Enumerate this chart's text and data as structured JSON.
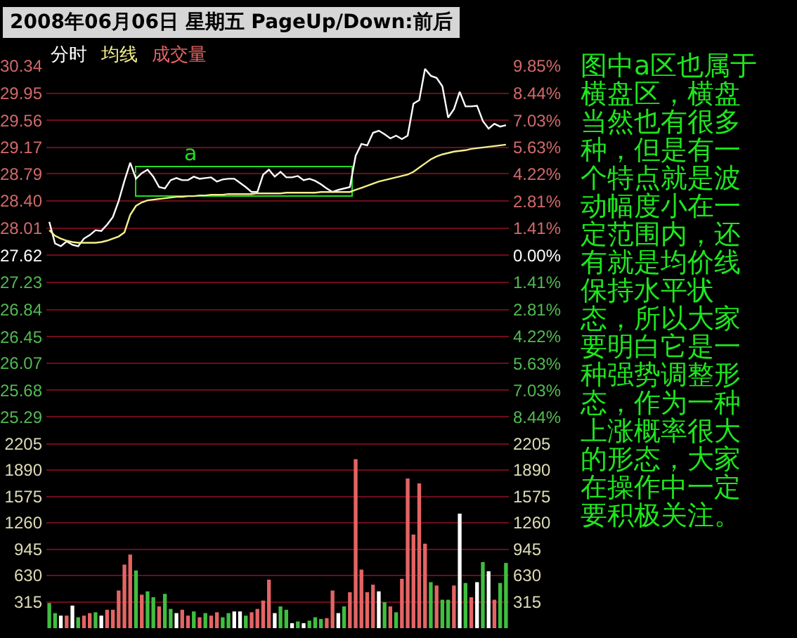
{
  "chart_data": [
    {
      "type": "line",
      "title": "2008年06月06日 星期五 PageUp/Down:前后",
      "categories": [
        null,
        null,
        null,
        null,
        null,
        null,
        null,
        null,
        null,
        null,
        null,
        null,
        null,
        null,
        null,
        null,
        null,
        null,
        null,
        null,
        null,
        null,
        null,
        null,
        null,
        null,
        null,
        null,
        null,
        null,
        null,
        null,
        null,
        null,
        null,
        null,
        null,
        null,
        null,
        null,
        null,
        null,
        null,
        null,
        null,
        null,
        null,
        null,
        null,
        null,
        null,
        null,
        null,
        null,
        null,
        null,
        null,
        null,
        null,
        null,
        null,
        null,
        null,
        null,
        null,
        null,
        null,
        null,
        null,
        null,
        null,
        null,
        null,
        null,
        null,
        null,
        null,
        null,
        null,
        null
      ],
      "series": [
        {
          "name": "分时",
          "color": "#ffffff",
          "values": [
            28.1,
            27.79,
            27.75,
            27.82,
            27.77,
            27.75,
            27.86,
            27.91,
            27.98,
            27.97,
            28.06,
            28.17,
            28.4,
            28.69,
            28.95,
            28.72,
            28.8,
            28.85,
            28.75,
            28.6,
            28.58,
            28.7,
            28.73,
            28.7,
            28.7,
            28.75,
            28.72,
            28.73,
            28.74,
            28.68,
            28.71,
            28.72,
            28.72,
            28.66,
            28.6,
            28.53,
            28.53,
            28.78,
            28.85,
            28.75,
            28.82,
            28.74,
            28.74,
            28.76,
            28.7,
            28.72,
            28.69,
            28.64,
            28.58,
            28.53,
            28.56,
            28.58,
            28.6,
            29.05,
            29.22,
            29.2,
            29.38,
            29.41,
            29.36,
            29.3,
            29.34,
            29.29,
            29.34,
            29.8,
            29.85,
            30.3,
            30.2,
            30.17,
            30.05,
            29.6,
            29.72,
            29.97,
            29.76,
            29.76,
            29.77,
            29.55,
            29.44,
            29.51,
            29.47,
            29.49
          ]
        },
        {
          "name": "均线",
          "color": "#f4f08c",
          "values": [
            27.98,
            27.9,
            27.86,
            27.83,
            27.81,
            27.8,
            27.8,
            27.8,
            27.8,
            27.81,
            27.83,
            27.86,
            27.89,
            27.95,
            28.2,
            28.33,
            28.38,
            28.41,
            28.42,
            28.43,
            28.44,
            28.45,
            28.46,
            28.46,
            28.47,
            28.47,
            28.48,
            28.48,
            28.49,
            28.49,
            28.49,
            28.5,
            28.5,
            28.5,
            28.5,
            28.5,
            28.51,
            28.51,
            28.51,
            28.51,
            28.51,
            28.52,
            28.52,
            28.52,
            28.52,
            28.52,
            28.52,
            28.53,
            28.53,
            28.53,
            28.53,
            28.53,
            28.53,
            28.56,
            28.59,
            28.62,
            28.65,
            28.68,
            28.7,
            28.72,
            28.74,
            28.76,
            28.78,
            28.82,
            28.88,
            28.94,
            29.0,
            29.04,
            29.07,
            29.09,
            29.11,
            29.12,
            29.13,
            29.15,
            29.16,
            29.17,
            29.18,
            29.19,
            29.2,
            29.21
          ]
        }
      ],
      "ylim": [
        25.29,
        30.34
      ],
      "yticks": [
        25.29,
        25.68,
        26.07,
        26.45,
        26.84,
        27.23,
        27.62,
        28.01,
        {
          "value": 28.4,
          "label": "28.40"
        },
        28.79,
        29.17,
        29.56,
        29.95,
        30.34
      ],
      "y2lim": [
        -8.44,
        9.85
      ],
      "y2ticks": [
        {
          "value": -8.44,
          "label": "8.44%"
        },
        {
          "value": -7.03,
          "label": "7.03%"
        },
        {
          "value": -5.63,
          "label": "5.63%"
        },
        {
          "value": -4.22,
          "label": "4.22%"
        },
        {
          "value": -2.81,
          "label": "2.81%"
        },
        {
          "value": -1.41,
          "label": "1.41%"
        },
        {
          "value": 0,
          "label": "0.00%"
        },
        {
          "value": 1.41,
          "label": "1.41%"
        },
        {
          "value": 2.81,
          "label": "2.81%"
        },
        {
          "value": 4.22,
          "label": "4.22%"
        },
        {
          "value": 5.63,
          "label": "5.63%"
        },
        {
          "value": 7.03,
          "label": "7.03%"
        },
        {
          "value": 8.44,
          "label": "8.44%"
        },
        {
          "value": 9.85,
          "label": "9.85%"
        }
      ],
      "grid": "y",
      "legend": "top left",
      "annotations": [
        "图中a区也属于横盘区，横盘当然也有很多种，但是有一个特点就是波动幅度小在一定范围内，还有就是均价线保持水平状态，所以大家要明白它是一种强势调整形态，作为一种上涨概率很大的形态，大家在操作中一定要积极关注。",
        "a"
      ]
    },
    {
      "type": "bar",
      "categories": [
        null,
        null,
        null,
        null,
        null,
        null,
        null,
        null,
        null,
        null,
        null,
        null,
        null,
        null,
        null,
        null,
        null,
        null,
        null,
        null,
        null,
        null,
        null,
        null,
        null,
        null,
        null,
        null,
        null,
        null,
        null,
        null,
        null,
        null,
        null,
        null,
        null,
        null,
        null,
        null,
        null,
        null,
        null,
        null,
        null,
        null,
        null,
        null,
        null,
        null,
        null,
        null,
        null,
        null,
        null,
        null,
        null,
        null,
        null,
        null,
        null,
        null,
        null,
        null,
        null,
        null,
        null,
        null,
        null,
        null,
        null,
        null,
        null,
        null,
        null,
        null,
        null,
        null,
        null,
        null
      ],
      "series": [
        {
          "name": "成交量",
          "color": "#e46464",
          "values": [
            300,
            180,
            150,
            150,
            270,
            130,
            150,
            180,
            190,
            150,
            220,
            220,
            450,
            760,
            880,
            690,
            400,
            440,
            370,
            260,
            410,
            230,
            180,
            220,
            150,
            200,
            130,
            180,
            150,
            190,
            130,
            180,
            200,
            200,
            150,
            190,
            230,
            330,
            580,
            180,
            260,
            220,
            60,
            80,
            60,
            90,
            130,
            110,
            120,
            450,
            180,
            260,
            430,
            2020,
            700,
            430,
            520,
            440,
            310,
            260,
            190,
            590,
            1790,
            1120,
            1730,
            1010,
            550,
            510,
            340,
            340,
            510,
            1370,
            540,
            370,
            550,
            790,
            680,
            340,
            540,
            780
          ],
          "colors": [
            "#40be40",
            "#40be40",
            "#ffffff",
            "#e46464",
            "#ffffff",
            "#40be40",
            "#e46464",
            "#e46464",
            "#40be40",
            "#ffffff",
            "#e46464",
            "#e46464",
            "#e46464",
            "#e46464",
            "#e46464",
            "#40be40",
            "#e46464",
            "#40be40",
            "#40be40",
            "#e46464",
            "#40be40",
            "#40be40",
            "#ffffff",
            "#e46464",
            "#e46464",
            "#40be40",
            "#e46464",
            "#40be40",
            "#e46464",
            "#e46464",
            "#40be40",
            "#40be40",
            "#ffffff",
            "#ffffff",
            "#40be40",
            "#e46464",
            "#e46464",
            "#e46464",
            "#e46464",
            "#ffffff",
            "#40be40",
            "#40be40",
            "#ffffff",
            "#40be40",
            "#ffffff",
            "#40be40",
            "#40be40",
            "#40be40",
            "#e46464",
            "#e46464",
            "#ffffff",
            "#40be40",
            "#e46464",
            "#e46464",
            "#e46464",
            "#e46464",
            "#e46464",
            "#ffffff",
            "#40be40",
            "#e46464",
            "#40be40",
            "#e46464",
            "#e46464",
            "#e46464",
            "#e46464",
            "#e46464",
            "#40be40",
            "#e46464",
            "#40be40",
            "#40be40",
            "#e46464",
            "#ffffff",
            "#40be40",
            "#e46464",
            "#ffffff",
            "#40be40",
            "#ffffff",
            "#e46464",
            "#40be40",
            "#40be40"
          ]
        }
      ],
      "ylim": [
        0,
        2520
      ],
      "yticks": [
        315,
        630,
        945,
        1260,
        1575,
        1890,
        2205
      ],
      "y2lim": [
        0,
        2520
      ],
      "y2ticks": [
        315,
        630,
        945,
        1260,
        1575,
        1890,
        2205
      ],
      "grid": "y",
      "legend": "top left"
    }
  ]
}
